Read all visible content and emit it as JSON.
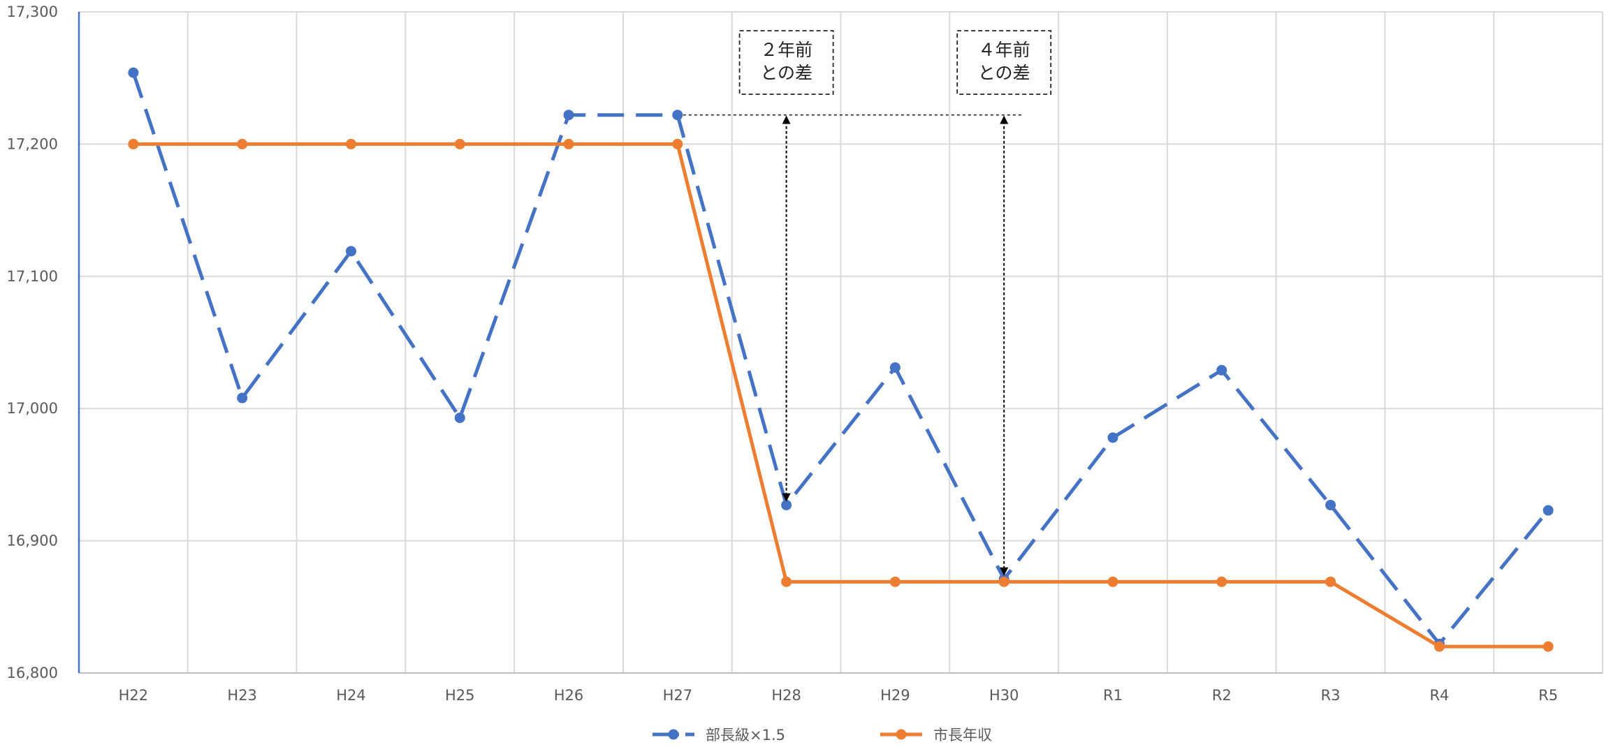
{
  "chart_data": {
    "type": "line",
    "categories": [
      "H22",
      "H23",
      "H24",
      "H25",
      "H26",
      "H27",
      "H28",
      "H29",
      "H30",
      "R1",
      "R2",
      "R3",
      "R4",
      "R5"
    ],
    "ylim": [
      16800,
      17300
    ],
    "yticks": [
      16800,
      16900,
      17000,
      17100,
      17200,
      17300
    ],
    "ytick_labels": [
      "16,800",
      "16,900",
      "17,000",
      "17,100",
      "17,200",
      "17,300"
    ],
    "grid": true,
    "legend_position": "bottom",
    "series": [
      {
        "name": "部長級×1.5",
        "color": "#4472C4",
        "line_style": "dashed",
        "values": [
          17254,
          17008,
          17119,
          16993,
          17222,
          17222,
          16927,
          17031,
          16871,
          16978,
          17029,
          16927,
          16822,
          16923
        ]
      },
      {
        "name": "市長年収",
        "color": "#ED7D31",
        "line_style": "solid",
        "values": [
          17200,
          17200,
          17200,
          17200,
          17200,
          17200,
          16869,
          16869,
          16869,
          16869,
          16869,
          16869,
          16820,
          16820
        ]
      }
    ],
    "annotations": [
      {
        "lines": [
          "２年前",
          "との差"
        ],
        "category": "H28",
        "arrow_from": 17222,
        "arrow_to": 16927
      },
      {
        "lines": [
          "４年前",
          "との差"
        ],
        "category": "H30",
        "arrow_from": 17222,
        "arrow_to": 16871
      }
    ],
    "reference_line": {
      "value": 17222,
      "from_category": "H27",
      "style": "dotted"
    }
  }
}
